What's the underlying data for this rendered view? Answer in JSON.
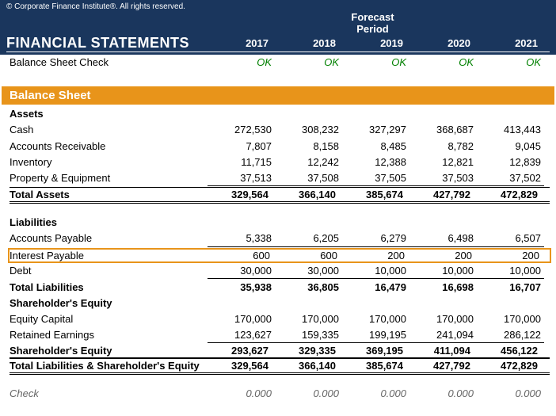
{
  "copyright": "© Corporate Finance Institute®. All rights reserved.",
  "title": "FINANCIAL STATEMENTS",
  "forecast_label": "Forecast Period",
  "years": [
    "2017",
    "2018",
    "2019",
    "2020",
    "2021"
  ],
  "bs_check_label": "Balance Sheet Check",
  "bs_check_vals": [
    "OK",
    "OK",
    "OK",
    "OK",
    "OK"
  ],
  "section_title": "Balance Sheet",
  "assets_label": "Assets",
  "assets": [
    {
      "label": "Cash",
      "v": [
        "272,530",
        "308,232",
        "327,297",
        "368,687",
        "413,443"
      ]
    },
    {
      "label": "Accounts Receivable",
      "v": [
        "7,807",
        "8,158",
        "8,485",
        "8,782",
        "9,045"
      ]
    },
    {
      "label": "Inventory",
      "v": [
        "11,715",
        "12,242",
        "12,388",
        "12,821",
        "12,839"
      ]
    },
    {
      "label": "Property & Equipment",
      "v": [
        "37,513",
        "37,508",
        "37,505",
        "37,503",
        "37,502"
      ]
    }
  ],
  "total_assets": {
    "label": "Total Assets",
    "v": [
      "329,564",
      "366,140",
      "385,674",
      "427,792",
      "472,829"
    ]
  },
  "liabilities_label": "Liabilities",
  "liabilities": [
    {
      "label": "Accounts Payable",
      "v": [
        "5,338",
        "6,205",
        "6,279",
        "6,498",
        "6,507"
      ]
    },
    {
      "label": "Interest Payable",
      "v": [
        "600",
        "600",
        "200",
        "200",
        "200"
      ]
    },
    {
      "label": "Debt",
      "v": [
        "30,000",
        "30,000",
        "10,000",
        "10,000",
        "10,000"
      ]
    }
  ],
  "total_liab": {
    "label": "Total Liabilities",
    "v": [
      "35,938",
      "36,805",
      "16,479",
      "16,698",
      "16,707"
    ]
  },
  "se_label": "Shareholder's Equity",
  "se": [
    {
      "label": "Equity Capital",
      "v": [
        "170,000",
        "170,000",
        "170,000",
        "170,000",
        "170,000"
      ]
    },
    {
      "label": "Retained Earnings",
      "v": [
        "123,627",
        "159,335",
        "199,195",
        "241,094",
        "286,122"
      ]
    }
  ],
  "se_total": {
    "label": "Shareholder's Equity",
    "v": [
      "293,627",
      "329,335",
      "369,195",
      "411,094",
      "456,122"
    ]
  },
  "total_lse": {
    "label": "Total Liabilities & Shareholder's Equity",
    "v": [
      "329,564",
      "366,140",
      "385,674",
      "427,792",
      "472,829"
    ]
  },
  "check": {
    "label": "Check",
    "v": [
      "0.000",
      "0.000",
      "0.000",
      "0.000",
      "0.000"
    ]
  },
  "colors": {
    "navy": "#1a365d",
    "orange": "#e8941a",
    "ok_green": "#008000"
  }
}
